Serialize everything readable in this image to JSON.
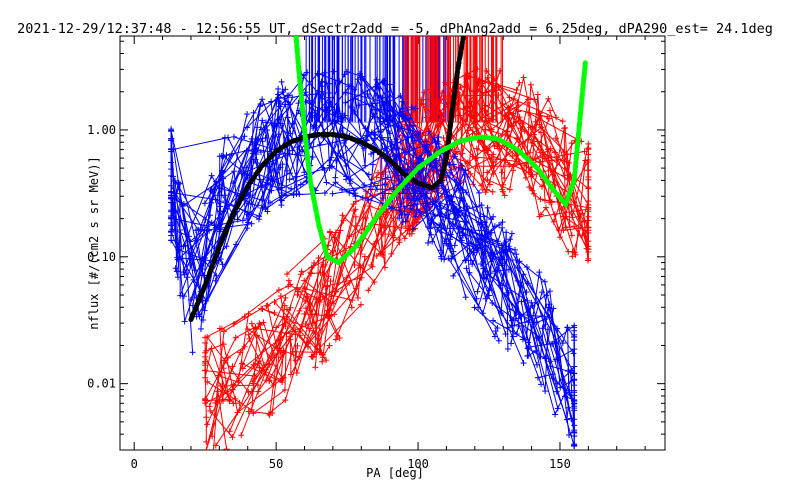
{
  "chart_data": {
    "type": "line",
    "title": "2021-12-29/12:37:48 - 12:56:55 UT, dSectr2add = -5, dPhAng2add = 6.25deg, dPA290_est=  24.1deg",
    "xlabel": "PA [deg]",
    "ylabel": "nflux [#/(cm2 s sr MeV)]",
    "xlim": [
      -5,
      187
    ],
    "ylim": [
      0.003,
      5.5
    ],
    "yscale": "log",
    "x_ticks": [
      0,
      50,
      100,
      150
    ],
    "x_tick_labels": [
      "0",
      "50",
      "100",
      "150"
    ],
    "y_ticks": [
      0.01,
      0.1,
      1.0
    ],
    "y_tick_labels": [
      "0.01",
      "0.10",
      "1.00"
    ],
    "grid": false,
    "colors": {
      "blue": "#0000ff",
      "red": "#ff0000",
      "fit_black": "#000000",
      "fit_green": "#00ff00"
    },
    "series": [
      {
        "color": "#0000ff",
        "style": "many crossing lines with plus markers",
        "x": [
          13,
          20,
          30,
          40,
          50,
          60,
          70,
          80,
          90,
          100,
          110,
          120,
          130,
          140,
          150,
          155
        ],
        "y": [
          0.35,
          0.04,
          0.25,
          0.45,
          0.75,
          0.9,
          0.95,
          0.9,
          0.75,
          0.45,
          0.25,
          0.12,
          0.06,
          0.03,
          0.015,
          0.01
        ]
      },
      {
        "color": "#ff0000",
        "style": "many crossing lines with plus markers",
        "x": [
          25,
          35,
          45,
          55,
          65,
          75,
          85,
          95,
          105,
          115,
          125,
          135,
          145,
          155,
          160
        ],
        "y": [
          0.008,
          0.01,
          0.015,
          0.025,
          0.04,
          0.08,
          0.18,
          0.4,
          0.75,
          0.95,
          1.0,
          0.9,
          0.6,
          0.3,
          0.25
        ]
      },
      {
        "color": "#000000",
        "style": "thick dashed fit",
        "x": [
          20,
          25,
          30,
          35,
          40,
          45,
          50,
          55,
          60,
          65,
          70,
          75,
          80,
          85,
          90,
          95,
          100,
          105,
          108,
          110,
          112,
          114,
          116
        ],
        "y": [
          0.032,
          0.06,
          0.12,
          0.22,
          0.36,
          0.52,
          0.68,
          0.8,
          0.88,
          0.92,
          0.92,
          0.88,
          0.8,
          0.7,
          0.58,
          0.45,
          0.38,
          0.35,
          0.4,
          0.6,
          1.4,
          3.0,
          5.5
        ]
      },
      {
        "color": "#00ff00",
        "style": "thick dashed fit",
        "x": [
          57,
          58,
          60,
          62,
          65,
          68,
          72,
          78,
          85,
          92,
          100,
          108,
          115,
          122,
          128,
          135,
          142,
          148,
          152,
          155,
          157,
          159
        ],
        "y": [
          5.5,
          3.0,
          1.0,
          0.4,
          0.18,
          0.1,
          0.09,
          0.12,
          0.2,
          0.32,
          0.5,
          0.68,
          0.82,
          0.88,
          0.85,
          0.7,
          0.5,
          0.33,
          0.26,
          0.4,
          1.2,
          3.5
        ]
      }
    ],
    "markers": {
      "blue_vertical_lines_x_range": [
        60,
        110
      ],
      "red_vertical_lines_x_range": [
        95,
        130
      ],
      "vertical_lines_y_base": 1.15
    }
  }
}
